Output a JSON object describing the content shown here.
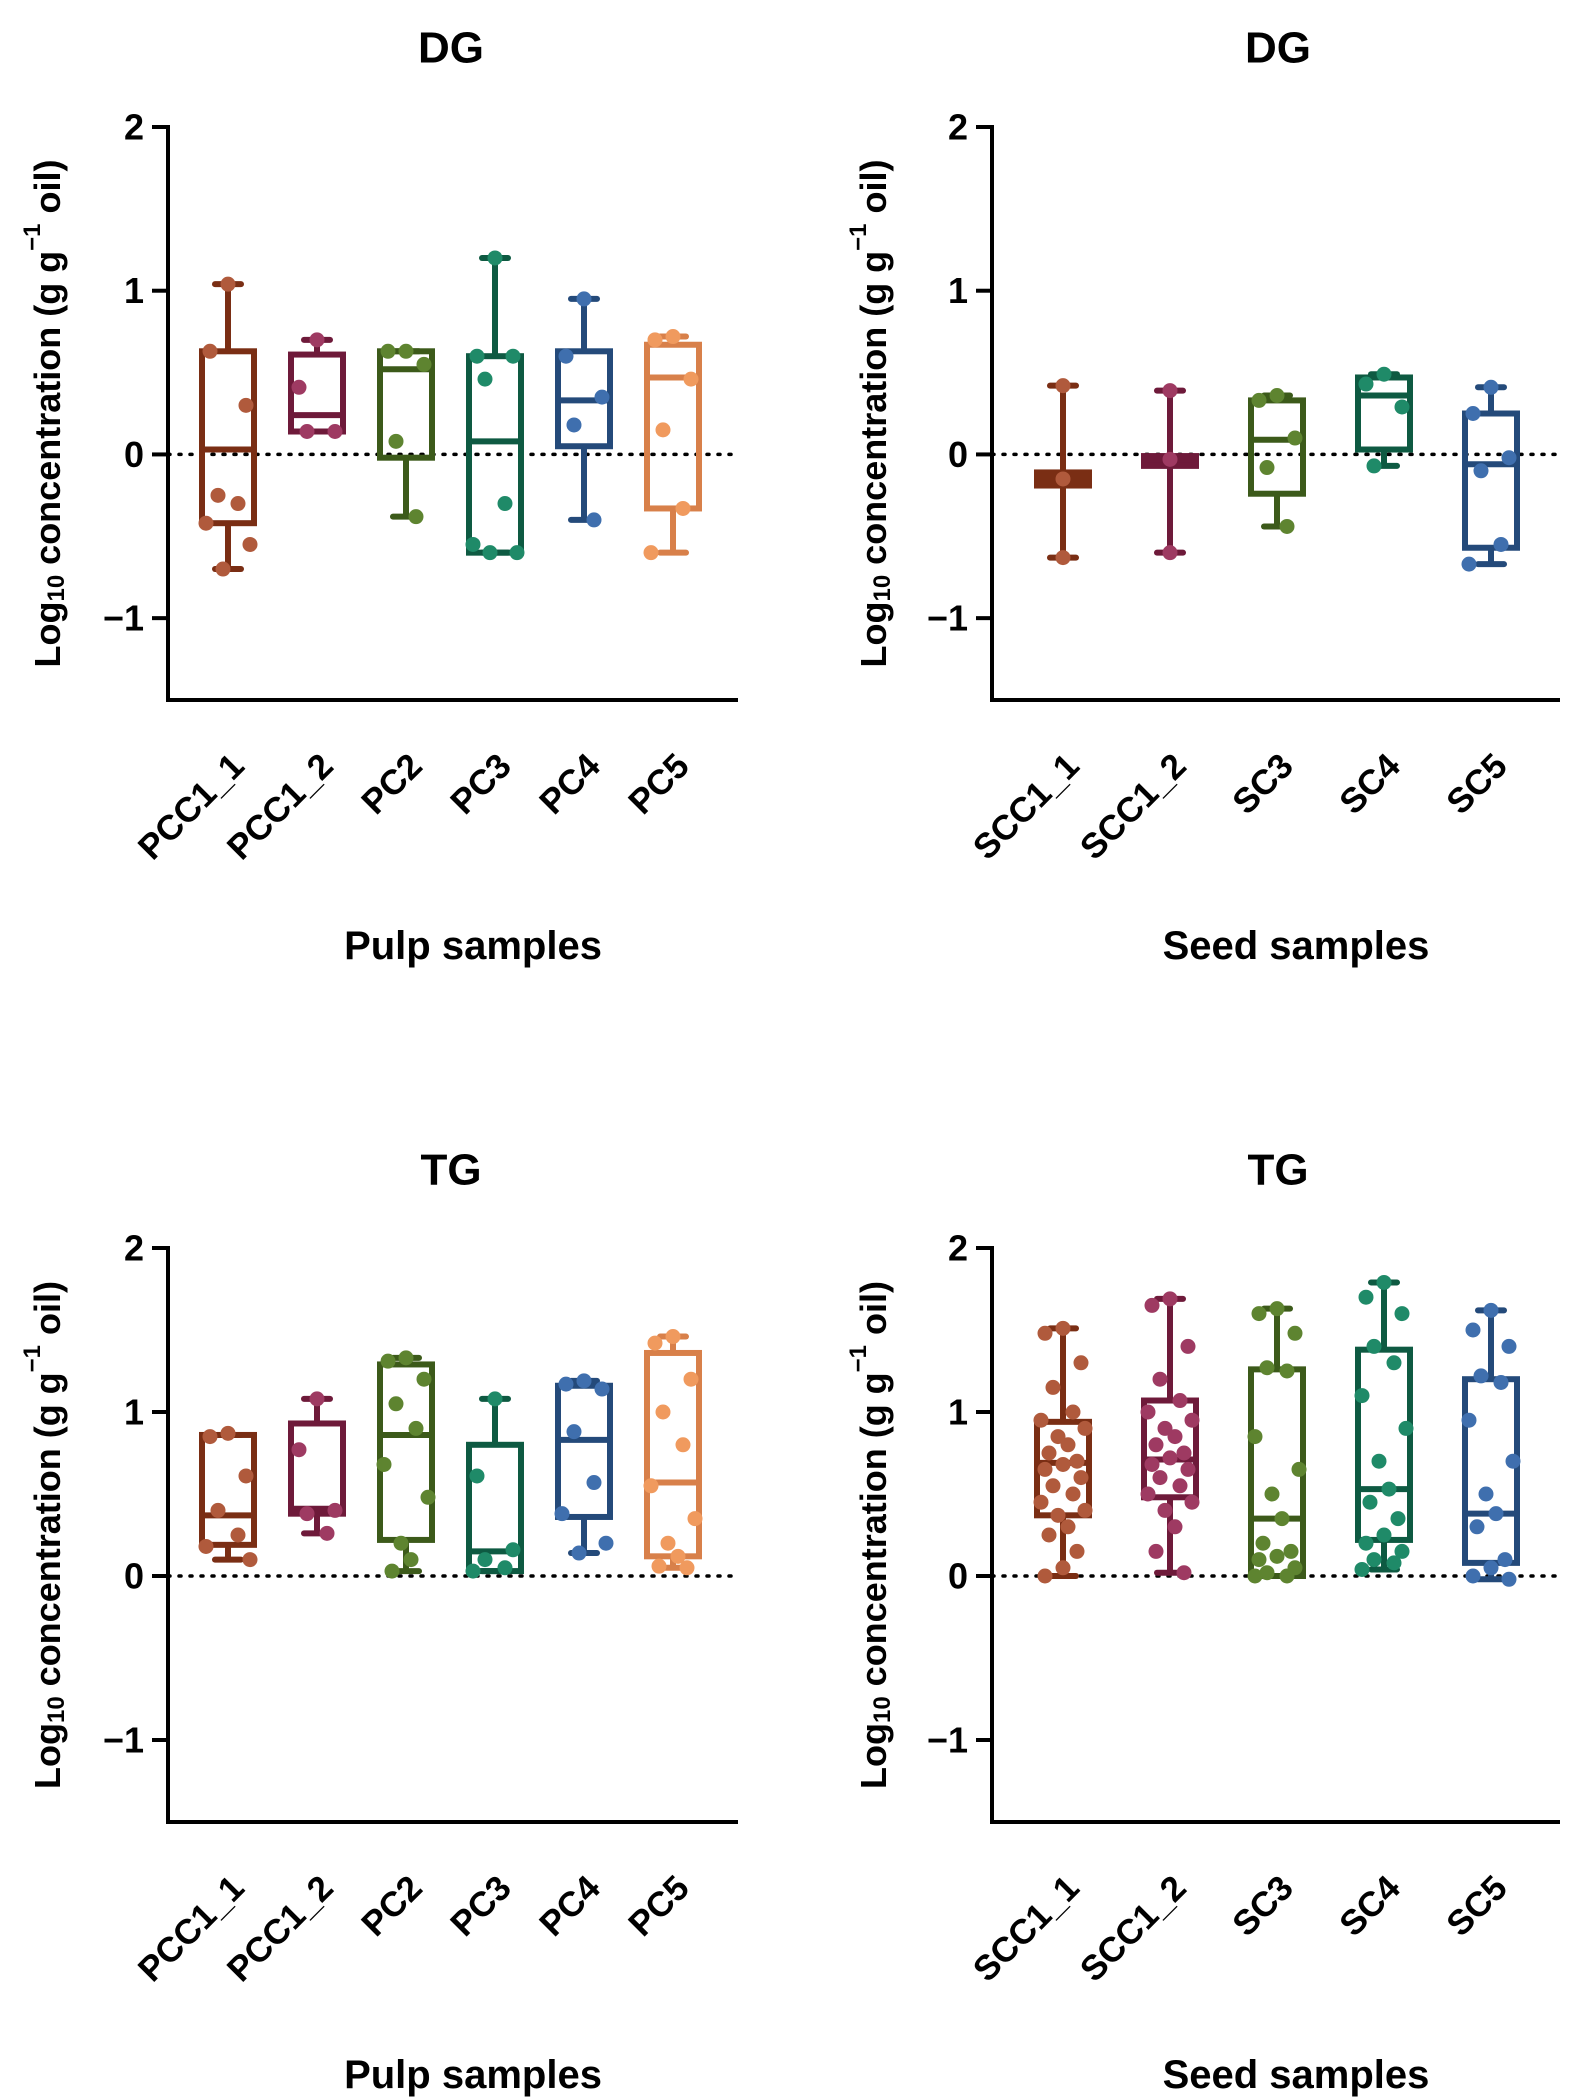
{
  "chart_data": [
    {
      "type": "box",
      "title": "DG",
      "xlabel": "Pulp samples",
      "ylabel": {
        "prefix": "Log",
        "sub": "10",
        "mid": " concentration (g g",
        "sup": "−1",
        "suffix": " oil)"
      },
      "ylim": [
        -1.5,
        2
      ],
      "yticks": [
        {
          "value": 2,
          "label": "2"
        },
        {
          "value": 1,
          "label": "1"
        },
        {
          "value": 0,
          "label": "0"
        },
        {
          "value": -1,
          "label": "−1"
        }
      ],
      "reference_line": 0,
      "groups": [
        {
          "name": "PCC1_1",
          "color": "#7a2e14",
          "dot": "#b05a3c",
          "thin": false,
          "whisker_low": -0.7,
          "q1": -0.42,
          "median": 0.03,
          "q3": 0.63,
          "whisker_high": 1.04,
          "points": [
            1.04,
            0.63,
            0.3,
            -0.25,
            -0.3,
            -0.42,
            -0.55,
            -0.7
          ]
        },
        {
          "name": "PCC1_2",
          "color": "#6e1a3a",
          "dot": "#9e3a62",
          "thin": false,
          "whisker_low": 0.14,
          "q1": 0.14,
          "median": 0.24,
          "q3": 0.61,
          "whisker_high": 0.7,
          "points": [
            0.7,
            0.41,
            0.14,
            0.14
          ]
        },
        {
          "name": "PC2",
          "color": "#3c5a1a",
          "dot": "#5e8430",
          "thin": false,
          "whisker_low": -0.38,
          "q1": -0.02,
          "median": 0.52,
          "q3": 0.63,
          "whisker_high": 0.63,
          "points": [
            0.63,
            0.63,
            0.55,
            0.08,
            -0.38
          ]
        },
        {
          "name": "PC3",
          "color": "#0e5a42",
          "dot": "#1f8a68",
          "thin": false,
          "whisker_low": -0.6,
          "q1": -0.6,
          "median": 0.08,
          "q3": 0.6,
          "whisker_high": 1.2,
          "points": [
            1.2,
            0.6,
            0.6,
            0.46,
            -0.3,
            -0.55,
            -0.6,
            -0.6
          ]
        },
        {
          "name": "PC4",
          "color": "#244a7a",
          "dot": "#3f6fae",
          "thin": false,
          "whisker_low": -0.4,
          "q1": 0.05,
          "median": 0.33,
          "q3": 0.63,
          "whisker_high": 0.95,
          "points": [
            0.95,
            0.6,
            0.35,
            0.18,
            -0.4
          ]
        },
        {
          "name": "PC5",
          "color": "#d8804a",
          "dot": "#f09a5e",
          "thin": false,
          "whisker_low": -0.6,
          "q1": -0.33,
          "median": 0.47,
          "q3": 0.67,
          "whisker_high": 0.72,
          "points": [
            0.72,
            0.7,
            0.46,
            0.15,
            -0.33,
            -0.6
          ]
        }
      ]
    },
    {
      "type": "box",
      "title": "DG",
      "xlabel": "Seed samples",
      "ylabel": {
        "prefix": "Log",
        "sub": "10",
        "mid": " concentration (g g",
        "sup": "−1",
        "suffix": " oil)"
      },
      "ylim": [
        -1.5,
        2
      ],
      "yticks": [
        {
          "value": 2,
          "label": "2"
        },
        {
          "value": 1,
          "label": "1"
        },
        {
          "value": 0,
          "label": "0"
        },
        {
          "value": -1,
          "label": "−1"
        }
      ],
      "reference_line": 0,
      "groups": [
        {
          "name": "SCC1_1",
          "color": "#7a2e14",
          "dot": "#b05a3c",
          "thin": true,
          "whisker_low": -0.63,
          "q1": -0.19,
          "median": -0.15,
          "q3": -0.11,
          "whisker_high": 0.42,
          "points": [
            0.42,
            -0.15,
            -0.63
          ]
        },
        {
          "name": "SCC1_2",
          "color": "#6e1a3a",
          "dot": "#9e3a62",
          "thin": true,
          "whisker_low": -0.6,
          "q1": -0.07,
          "median": -0.03,
          "q3": -0.01,
          "whisker_high": 0.39,
          "points": [
            0.39,
            -0.03,
            -0.6
          ]
        },
        {
          "name": "SC3",
          "color": "#3c5a1a",
          "dot": "#5e8430",
          "thin": false,
          "whisker_low": -0.44,
          "q1": -0.24,
          "median": 0.09,
          "q3": 0.33,
          "whisker_high": 0.36,
          "points": [
            0.36,
            0.33,
            0.1,
            -0.08,
            -0.44
          ]
        },
        {
          "name": "SC4",
          "color": "#0e5a42",
          "dot": "#1f8a68",
          "thin": false,
          "whisker_low": -0.07,
          "q1": 0.03,
          "median": 0.36,
          "q3": 0.47,
          "whisker_high": 0.49,
          "points": [
            0.49,
            0.43,
            0.29,
            -0.07
          ]
        },
        {
          "name": "SC5",
          "color": "#244a7a",
          "dot": "#3f6fae",
          "thin": false,
          "whisker_low": -0.67,
          "q1": -0.57,
          "median": -0.06,
          "q3": 0.25,
          "whisker_high": 0.41,
          "points": [
            0.41,
            0.25,
            -0.02,
            -0.1,
            -0.55,
            -0.67
          ]
        }
      ]
    },
    {
      "type": "box",
      "title": "TG",
      "xlabel": "Pulp samples",
      "ylabel": {
        "prefix": "Log",
        "sub": "10",
        "mid": " concentration (g g",
        "sup": "−1",
        "suffix": " oil)"
      },
      "ylim": [
        -1.5,
        2
      ],
      "yticks": [
        {
          "value": 2,
          "label": "2"
        },
        {
          "value": 1,
          "label": "1"
        },
        {
          "value": 0,
          "label": "0"
        },
        {
          "value": -1,
          "label": "−1"
        }
      ],
      "reference_line": 0,
      "groups": [
        {
          "name": "PCC1_1",
          "color": "#7a2e14",
          "dot": "#b05a3c",
          "thin": false,
          "whisker_low": 0.1,
          "q1": 0.19,
          "median": 0.37,
          "q3": 0.86,
          "whisker_high": 0.86,
          "points": [
            0.87,
            0.85,
            0.61,
            0.4,
            0.25,
            0.18,
            0.1
          ]
        },
        {
          "name": "PCC1_2",
          "color": "#6e1a3a",
          "dot": "#9e3a62",
          "thin": false,
          "whisker_low": 0.26,
          "q1": 0.38,
          "median": 0.41,
          "q3": 0.93,
          "whisker_high": 1.08,
          "points": [
            1.08,
            0.77,
            0.4,
            0.38,
            0.26
          ]
        },
        {
          "name": "PC2",
          "color": "#3c5a1a",
          "dot": "#5e8430",
          "thin": false,
          "whisker_low": 0.03,
          "q1": 0.22,
          "median": 0.86,
          "q3": 1.29,
          "whisker_high": 1.33,
          "points": [
            1.33,
            1.31,
            1.2,
            1.05,
            0.9,
            0.68,
            0.48,
            0.2,
            0.1,
            0.03
          ]
        },
        {
          "name": "PC3",
          "color": "#0e5a42",
          "dot": "#1f8a68",
          "thin": false,
          "whisker_low": 0.03,
          "q1": 0.03,
          "median": 0.15,
          "q3": 0.8,
          "whisker_high": 1.08,
          "points": [
            1.08,
            0.61,
            0.16,
            0.1,
            0.05,
            0.03
          ]
        },
        {
          "name": "PC4",
          "color": "#244a7a",
          "dot": "#3f6fae",
          "thin": false,
          "whisker_low": 0.14,
          "q1": 0.36,
          "median": 0.83,
          "q3": 1.16,
          "whisker_high": 1.19,
          "points": [
            1.19,
            1.17,
            1.14,
            0.88,
            0.57,
            0.38,
            0.2,
            0.14
          ]
        },
        {
          "name": "PC5",
          "color": "#d8804a",
          "dot": "#f09a5e",
          "thin": false,
          "whisker_low": 0.05,
          "q1": 0.12,
          "median": 0.57,
          "q3": 1.36,
          "whisker_high": 1.46,
          "points": [
            1.46,
            1.42,
            1.2,
            1.0,
            0.8,
            0.55,
            0.35,
            0.2,
            0.12,
            0.06,
            0.05
          ]
        }
      ]
    },
    {
      "type": "box",
      "title": "TG",
      "xlabel": "Seed samples",
      "ylabel": {
        "prefix": "Log",
        "sub": "10",
        "mid": " concentration (g g",
        "sup": "−1",
        "suffix": " oil)"
      },
      "ylim": [
        -1.5,
        2
      ],
      "yticks": [
        {
          "value": 2,
          "label": "2"
        },
        {
          "value": 1,
          "label": "1"
        },
        {
          "value": 0,
          "label": "0"
        },
        {
          "value": -1,
          "label": "−1"
        }
      ],
      "reference_line": 0,
      "groups": [
        {
          "name": "SCC1_1",
          "color": "#7a2e14",
          "dot": "#b05a3c",
          "thin": false,
          "whisker_low": 0.0,
          "q1": 0.37,
          "median": 0.69,
          "q3": 0.94,
          "whisker_high": 1.51,
          "points": [
            1.51,
            1.48,
            1.3,
            1.15,
            1.0,
            0.95,
            0.9,
            0.85,
            0.8,
            0.75,
            0.7,
            0.68,
            0.65,
            0.6,
            0.55,
            0.5,
            0.45,
            0.4,
            0.37,
            0.3,
            0.25,
            0.15,
            0.05,
            0.0
          ]
        },
        {
          "name": "SCC1_2",
          "color": "#6e1a3a",
          "dot": "#9e3a62",
          "thin": false,
          "whisker_low": 0.02,
          "q1": 0.48,
          "median": 0.71,
          "q3": 1.07,
          "whisker_high": 1.69,
          "points": [
            1.69,
            1.65,
            1.4,
            1.2,
            1.07,
            1.0,
            0.95,
            0.9,
            0.85,
            0.8,
            0.75,
            0.72,
            0.68,
            0.65,
            0.6,
            0.55,
            0.5,
            0.45,
            0.4,
            0.3,
            0.15,
            0.02
          ]
        },
        {
          "name": "SC3",
          "color": "#3c5a1a",
          "dot": "#5e8430",
          "thin": false,
          "whisker_low": 0.0,
          "q1": 0.0,
          "median": 0.35,
          "q3": 1.26,
          "whisker_high": 1.63,
          "points": [
            1.63,
            1.6,
            1.48,
            1.27,
            1.25,
            0.85,
            0.65,
            0.5,
            0.35,
            0.2,
            0.15,
            0.12,
            0.1,
            0.05,
            0.02,
            0.0,
            0.0
          ]
        },
        {
          "name": "SC4",
          "color": "#0e5a42",
          "dot": "#1f8a68",
          "thin": false,
          "whisker_low": 0.04,
          "q1": 0.22,
          "median": 0.53,
          "q3": 1.38,
          "whisker_high": 1.79,
          "points": [
            1.79,
            1.7,
            1.6,
            1.4,
            1.3,
            1.1,
            0.9,
            0.7,
            0.53,
            0.45,
            0.35,
            0.25,
            0.2,
            0.15,
            0.1,
            0.08,
            0.04
          ]
        },
        {
          "name": "SC5",
          "color": "#244a7a",
          "dot": "#3f6fae",
          "thin": false,
          "whisker_low": -0.02,
          "q1": 0.08,
          "median": 0.38,
          "q3": 1.2,
          "whisker_high": 1.62,
          "points": [
            1.62,
            1.5,
            1.4,
            1.22,
            1.18,
            0.95,
            0.7,
            0.5,
            0.38,
            0.3,
            0.1,
            0.05,
            0.0,
            -0.02
          ]
        }
      ]
    }
  ]
}
